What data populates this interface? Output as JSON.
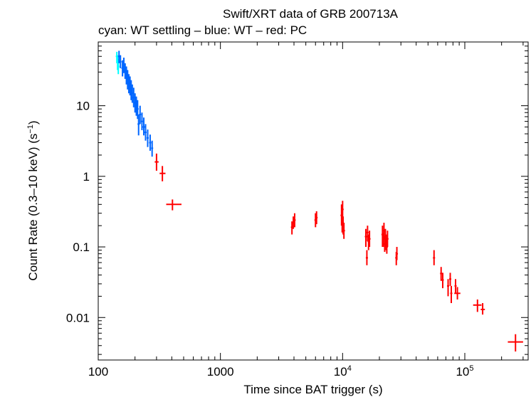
{
  "chart_data": {
    "type": "scatter",
    "title": "Swift/XRT data of GRB 200713A",
    "subtitle": "cyan: WT settling – blue: WT – red: PC",
    "xlabel": "Time since BAT trigger (s)",
    "ylabel": "Count Rate (0.3–10 keV) (s⁻¹)",
    "xscale": "log",
    "yscale": "log",
    "xlim": [
      100,
      330000
    ],
    "ylim": [
      0.0025,
      80
    ],
    "x_ticks": [
      {
        "value": 100,
        "label": "100"
      },
      {
        "value": 1000,
        "label": "1000"
      },
      {
        "value": 10000,
        "base": "10",
        "exp": "4"
      },
      {
        "value": 100000,
        "base": "10",
        "exp": "5"
      }
    ],
    "y_ticks": [
      {
        "value": 0.01,
        "label": "0.01"
      },
      {
        "value": 0.1,
        "label": "0.1"
      },
      {
        "value": 1,
        "label": "1"
      },
      {
        "value": 10,
        "label": "10"
      }
    ],
    "colors": {
      "wt_settling": "#00ffff",
      "wt": "#0066ff",
      "pc": "#ff0000",
      "axis": "#000000"
    },
    "series": [
      {
        "name": "WT settling",
        "color": "#00ffff",
        "points": [
          {
            "x": 142,
            "y": 50,
            "ylo": 40,
            "yhi": 58
          },
          {
            "x": 144,
            "y": 42,
            "ylo": 32,
            "yhi": 52
          },
          {
            "x": 146,
            "y": 36,
            "ylo": 28,
            "yhi": 46
          }
        ]
      },
      {
        "name": "WT",
        "color": "#0066ff",
        "points": [
          {
            "x": 148,
            "y": 50,
            "ylo": 40,
            "yhi": 60
          },
          {
            "x": 152,
            "y": 42,
            "ylo": 34,
            "yhi": 52
          },
          {
            "x": 158,
            "y": 34,
            "ylo": 26,
            "yhi": 44
          },
          {
            "x": 162,
            "y": 38,
            "ylo": 29,
            "yhi": 48
          },
          {
            "x": 166,
            "y": 31,
            "ylo": 24,
            "yhi": 40
          },
          {
            "x": 170,
            "y": 27,
            "ylo": 20,
            "yhi": 36
          },
          {
            "x": 174,
            "y": 24,
            "ylo": 17,
            "yhi": 32
          },
          {
            "x": 178,
            "y": 21,
            "ylo": 15,
            "yhi": 28
          },
          {
            "x": 182,
            "y": 19,
            "ylo": 14,
            "yhi": 26
          },
          {
            "x": 186,
            "y": 17,
            "ylo": 12,
            "yhi": 23
          },
          {
            "x": 190,
            "y": 15,
            "ylo": 11,
            "yhi": 20
          },
          {
            "x": 195,
            "y": 13,
            "ylo": 9.5,
            "yhi": 18
          },
          {
            "x": 200,
            "y": 11,
            "ylo": 8,
            "yhi": 15
          },
          {
            "x": 205,
            "y": 10,
            "ylo": 7.2,
            "yhi": 13.5
          },
          {
            "x": 210,
            "y": 9,
            "ylo": 6.5,
            "yhi": 12
          },
          {
            "x": 214,
            "y": 5.5,
            "ylo": 3.8,
            "yhi": 7.5
          },
          {
            "x": 220,
            "y": 7.5,
            "ylo": 5.5,
            "yhi": 10
          },
          {
            "x": 228,
            "y": 6,
            "ylo": 4.5,
            "yhi": 8
          },
          {
            "x": 236,
            "y": 5,
            "ylo": 3.8,
            "yhi": 6.8
          },
          {
            "x": 244,
            "y": 4.2,
            "ylo": 3.2,
            "yhi": 5.5
          },
          {
            "x": 254,
            "y": 3.5,
            "ylo": 2.6,
            "yhi": 4.6
          },
          {
            "x": 266,
            "y": 3,
            "ylo": 2.3,
            "yhi": 3.9
          },
          {
            "x": 276,
            "y": 2.5,
            "ylo": 1.9,
            "yhi": 3.2
          }
        ]
      },
      {
        "name": "PC",
        "color": "#ff0000",
        "points": [
          {
            "x": 300,
            "xlo": 290,
            "xhi": 312,
            "y": 1.6,
            "ylo": 1.2,
            "yhi": 2.1
          },
          {
            "x": 335,
            "xlo": 318,
            "xhi": 355,
            "y": 1.1,
            "ylo": 0.85,
            "yhi": 1.4
          },
          {
            "x": 405,
            "xlo": 360,
            "xhi": 480,
            "y": 0.4,
            "ylo": 0.33,
            "yhi": 0.47
          },
          {
            "x": 3850,
            "y": 0.19,
            "ylo": 0.15,
            "yhi": 0.23
          },
          {
            "x": 3950,
            "y": 0.22,
            "ylo": 0.18,
            "yhi": 0.27
          },
          {
            "x": 4050,
            "y": 0.24,
            "ylo": 0.19,
            "yhi": 0.3
          },
          {
            "x": 6000,
            "y": 0.24,
            "ylo": 0.19,
            "yhi": 0.3
          },
          {
            "x": 6120,
            "y": 0.26,
            "ylo": 0.21,
            "yhi": 0.32
          },
          {
            "x": 9800,
            "y": 0.28,
            "ylo": 0.2,
            "yhi": 0.4
          },
          {
            "x": 9920,
            "y": 0.22,
            "ylo": 0.16,
            "yhi": 0.3
          },
          {
            "x": 10000,
            "y": 0.34,
            "ylo": 0.25,
            "yhi": 0.45
          },
          {
            "x": 10100,
            "y": 0.2,
            "ylo": 0.15,
            "yhi": 0.27
          },
          {
            "x": 10250,
            "y": 0.17,
            "ylo": 0.13,
            "yhi": 0.22
          },
          {
            "x": 15500,
            "y": 0.14,
            "ylo": 0.1,
            "yhi": 0.18
          },
          {
            "x": 15800,
            "y": 0.07,
            "ylo": 0.055,
            "yhi": 0.09
          },
          {
            "x": 16000,
            "y": 0.16,
            "ylo": 0.12,
            "yhi": 0.2
          },
          {
            "x": 16300,
            "y": 0.12,
            "ylo": 0.09,
            "yhi": 0.15
          },
          {
            "x": 16600,
            "y": 0.13,
            "ylo": 0.1,
            "yhi": 0.17
          },
          {
            "x": 21200,
            "y": 0.15,
            "ylo": 0.1,
            "yhi": 0.2
          },
          {
            "x": 21500,
            "y": 0.13,
            "ylo": 0.1,
            "yhi": 0.16
          },
          {
            "x": 21800,
            "y": 0.17,
            "ylo": 0.13,
            "yhi": 0.22
          },
          {
            "x": 22100,
            "y": 0.11,
            "ylo": 0.085,
            "yhi": 0.14
          },
          {
            "x": 22400,
            "y": 0.14,
            "ylo": 0.1,
            "yhi": 0.18
          },
          {
            "x": 22700,
            "y": 0.12,
            "ylo": 0.09,
            "yhi": 0.15
          },
          {
            "x": 23000,
            "y": 0.1,
            "ylo": 0.08,
            "yhi": 0.13
          },
          {
            "x": 23300,
            "y": 0.13,
            "ylo": 0.1,
            "yhi": 0.17
          },
          {
            "x": 27500,
            "y": 0.07,
            "ylo": 0.055,
            "yhi": 0.085
          },
          {
            "x": 27800,
            "y": 0.08,
            "ylo": 0.065,
            "yhi": 0.1
          },
          {
            "x": 56000,
            "y": 0.07,
            "ylo": 0.055,
            "yhi": 0.09
          },
          {
            "x": 64000,
            "y": 0.042,
            "ylo": 0.033,
            "yhi": 0.052
          },
          {
            "x": 66000,
            "y": 0.034,
            "ylo": 0.026,
            "yhi": 0.043
          },
          {
            "x": 73000,
            "y": 0.028,
            "ylo": 0.02,
            "yhi": 0.035
          },
          {
            "x": 76000,
            "y": 0.035,
            "ylo": 0.028,
            "yhi": 0.043
          },
          {
            "x": 77500,
            "y": 0.022,
            "ylo": 0.016,
            "yhi": 0.028
          },
          {
            "x": 84000,
            "y": 0.028,
            "ylo": 0.022,
            "yhi": 0.035
          },
          {
            "x": 87000,
            "y": 0.022,
            "xlo": 82000,
            "xhi": 92000,
            "ylo": 0.018,
            "yhi": 0.027
          },
          {
            "x": 127000,
            "xlo": 117000,
            "xhi": 137000,
            "y": 0.015,
            "ylo": 0.012,
            "yhi": 0.018
          },
          {
            "x": 140000,
            "xlo": 135000,
            "xhi": 146000,
            "y": 0.013,
            "ylo": 0.011,
            "yhi": 0.016
          },
          {
            "x": 260000,
            "xlo": 225000,
            "xhi": 300000,
            "y": 0.0045,
            "ylo": 0.0033,
            "yhi": 0.0058
          }
        ]
      }
    ]
  }
}
